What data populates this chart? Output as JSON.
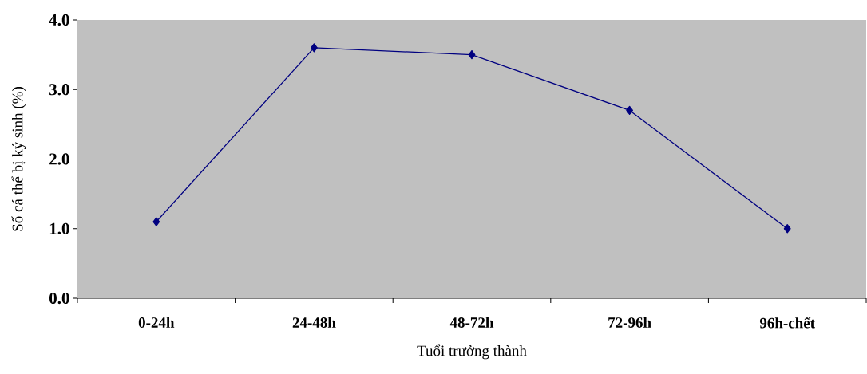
{
  "chart_data": {
    "type": "line",
    "xlabel": "Tuổi trưởng thành",
    "ylabel": "Số cá thể bị ký sinh (%)",
    "categories": [
      "0-24h",
      "24-48h",
      "48-72h",
      "72-96h",
      "96h-chết"
    ],
    "series": [
      {
        "color": "#000080",
        "values": [
          1.1,
          3.6,
          3.5,
          2.7,
          1.0
        ]
      }
    ],
    "ylim": [
      0,
      4
    ],
    "yticks": [
      {
        "value": 0,
        "label": "0.0"
      },
      {
        "value": 1,
        "label": "1.0"
      },
      {
        "value": 2,
        "label": "2.0"
      },
      {
        "value": 3,
        "label": "3.0"
      },
      {
        "value": 4,
        "label": "4.0"
      }
    ],
    "marker": "diamond",
    "line_style": "solid",
    "grid": false
  }
}
